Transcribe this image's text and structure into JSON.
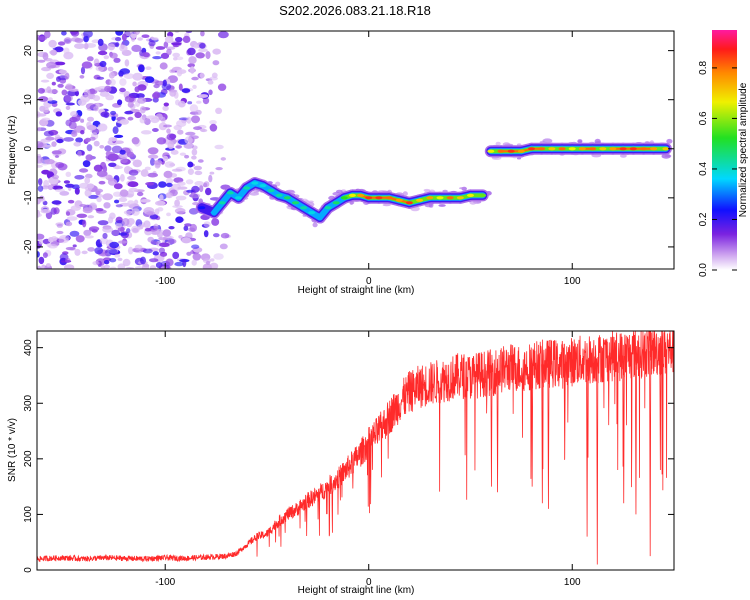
{
  "chart_data": [
    {
      "type": "heatmap",
      "title": "S202.2026.083.21.18.R18",
      "xlabel": "Height of straight line (km)",
      "ylabel": "Frequency (Hz)",
      "xlim": [
        -163,
        150
      ],
      "ylim": [
        -24.5,
        24
      ],
      "xticks": [
        -100,
        0,
        100
      ],
      "yticks": [
        -20,
        -10,
        0,
        10,
        20
      ],
      "colorbar": {
        "label": "Normalized spectral amplitude",
        "range": [
          0,
          0.95
        ],
        "ticks": [
          0.0,
          0.2,
          0.4,
          0.6,
          0.8
        ]
      },
      "noise_region": {
        "x_from": -163,
        "x_to": -75,
        "freq_from": -24.5,
        "freq_to": 24
      },
      "ridge": [
        {
          "x": -82,
          "f": -12.0,
          "a": 0.25
        },
        {
          "x": -76,
          "f": -13.0,
          "a": 0.35
        },
        {
          "x": -72,
          "f": -11.0,
          "a": 0.45
        },
        {
          "x": -68,
          "f": -9.0,
          "a": 0.45
        },
        {
          "x": -64,
          "f": -10.0,
          "a": 0.4
        },
        {
          "x": -60,
          "f": -8.0,
          "a": 0.45
        },
        {
          "x": -56,
          "f": -7.0,
          "a": 0.4
        },
        {
          "x": -52,
          "f": -7.5,
          "a": 0.4
        },
        {
          "x": -48,
          "f": -8.5,
          "a": 0.45
        },
        {
          "x": -44,
          "f": -9.5,
          "a": 0.45
        },
        {
          "x": -40,
          "f": -10.0,
          "a": 0.5
        },
        {
          "x": -36,
          "f": -11.0,
          "a": 0.5
        },
        {
          "x": -32,
          "f": -12.0,
          "a": 0.45
        },
        {
          "x": -28,
          "f": -13.0,
          "a": 0.4
        },
        {
          "x": -24,
          "f": -14.0,
          "a": 0.35
        },
        {
          "x": -20,
          "f": -12.0,
          "a": 0.45
        },
        {
          "x": -16,
          "f": -11.0,
          "a": 0.5
        },
        {
          "x": -12,
          "f": -10.0,
          "a": 0.55
        },
        {
          "x": -8,
          "f": -9.5,
          "a": 0.7
        },
        {
          "x": -4,
          "f": -9.5,
          "a": 0.8
        },
        {
          "x": 0,
          "f": -10.0,
          "a": 0.9
        },
        {
          "x": 5,
          "f": -10.0,
          "a": 0.9
        },
        {
          "x": 10,
          "f": -10.0,
          "a": 0.85
        },
        {
          "x": 15,
          "f": -10.5,
          "a": 0.8
        },
        {
          "x": 20,
          "f": -11.0,
          "a": 0.9
        },
        {
          "x": 25,
          "f": -10.5,
          "a": 0.75
        },
        {
          "x": 30,
          "f": -10.0,
          "a": 0.8
        },
        {
          "x": 35,
          "f": -10.0,
          "a": 0.7
        },
        {
          "x": 40,
          "f": -10.0,
          "a": 0.85
        },
        {
          "x": 45,
          "f": -10.0,
          "a": 0.75
        },
        {
          "x": 50,
          "f": -9.5,
          "a": 0.7
        },
        {
          "x": 56,
          "f": -9.5,
          "a": 0.6
        },
        {
          "x": 60,
          "f": -0.5,
          "a": 0.7
        },
        {
          "x": 65,
          "f": -0.5,
          "a": 0.85
        },
        {
          "x": 70,
          "f": -0.5,
          "a": 0.9
        },
        {
          "x": 75,
          "f": -0.5,
          "a": 0.8
        },
        {
          "x": 80,
          "f": 0.0,
          "a": 0.9
        },
        {
          "x": 85,
          "f": 0.0,
          "a": 0.85
        },
        {
          "x": 90,
          "f": 0.0,
          "a": 0.75
        },
        {
          "x": 95,
          "f": 0.0,
          "a": 0.85
        },
        {
          "x": 100,
          "f": 0.0,
          "a": 0.7
        },
        {
          "x": 105,
          "f": 0.0,
          "a": 0.8
        },
        {
          "x": 110,
          "f": 0.0,
          "a": 0.85
        },
        {
          "x": 115,
          "f": 0.0,
          "a": 0.75
        },
        {
          "x": 120,
          "f": 0.0,
          "a": 0.8
        },
        {
          "x": 125,
          "f": 0.0,
          "a": 0.9
        },
        {
          "x": 130,
          "f": 0.0,
          "a": 0.9
        },
        {
          "x": 135,
          "f": 0.0,
          "a": 0.85
        },
        {
          "x": 140,
          "f": 0.0,
          "a": 0.8
        },
        {
          "x": 146,
          "f": 0.0,
          "a": 0.75
        }
      ]
    },
    {
      "type": "line",
      "xlabel": "Height of straight line (km)",
      "ylabel": "SNR (10 * v/v)",
      "xlim": [
        -163,
        150
      ],
      "ylim": [
        0,
        430
      ],
      "xticks": [
        -100,
        0,
        100
      ],
      "yticks": [
        0,
        100,
        200,
        300,
        400
      ],
      "color": "#ff2a2a",
      "series": [
        {
          "name": "SNR",
          "x": [
            -163,
            -150,
            -140,
            -130,
            -120,
            -110,
            -100,
            -90,
            -80,
            -70,
            -65,
            -60,
            -55,
            -50,
            -45,
            -40,
            -35,
            -30,
            -25,
            -20,
            -15,
            -10,
            -5,
            0,
            5,
            10,
            15,
            20,
            25,
            30,
            35,
            40,
            45,
            50,
            55,
            60,
            65,
            70,
            75,
            80,
            85,
            90,
            95,
            100,
            105,
            110,
            115,
            120,
            125,
            130,
            135,
            140,
            145,
            150
          ],
          "values": [
            20,
            22,
            20,
            22,
            21,
            20,
            22,
            21,
            23,
            25,
            30,
            45,
            60,
            65,
            85,
            100,
            110,
            125,
            135,
            150,
            165,
            185,
            205,
            230,
            250,
            275,
            300,
            320,
            330,
            335,
            340,
            345,
            350,
            348,
            352,
            355,
            360,
            365,
            362,
            368,
            370,
            372,
            370,
            375,
            378,
            380,
            382,
            385,
            385,
            390,
            392,
            395,
            395,
            400
          ]
        }
      ],
      "dips": [
        {
          "x": 60,
          "y": 150
        },
        {
          "x": 63,
          "y": 140
        },
        {
          "x": 80,
          "y": 150
        },
        {
          "x": 85,
          "y": 120
        },
        {
          "x": 88,
          "y": 110
        },
        {
          "x": 96,
          "y": 200
        },
        {
          "x": 107,
          "y": 60
        },
        {
          "x": 112,
          "y": 10
        },
        {
          "x": 125,
          "y": 120
        },
        {
          "x": 131,
          "y": 100
        },
        {
          "x": 138,
          "y": 25
        },
        {
          "x": 143,
          "y": 180
        }
      ]
    }
  ]
}
